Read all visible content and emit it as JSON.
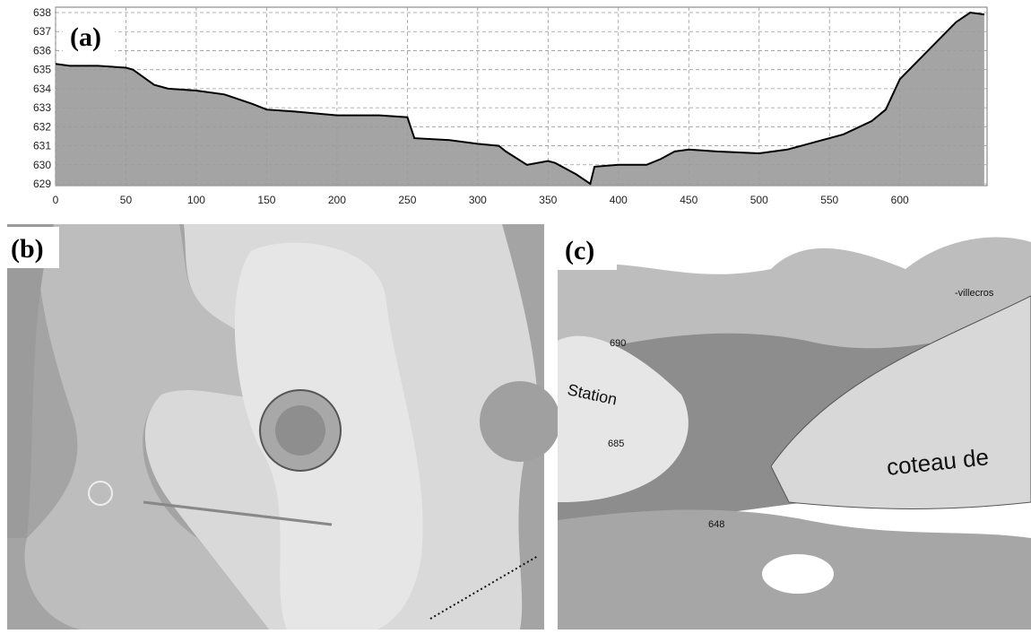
{
  "chart_data": {
    "type": "area",
    "label": "(a)",
    "x": [
      0,
      10,
      30,
      50,
      55,
      70,
      80,
      100,
      120,
      140,
      150,
      170,
      200,
      230,
      250,
      255,
      280,
      300,
      315,
      320,
      335,
      350,
      355,
      370,
      380,
      383,
      400,
      420,
      430,
      440,
      450,
      470,
      500,
      520,
      540,
      560,
      580,
      590,
      600,
      620,
      640,
      650,
      660
    ],
    "values": [
      635.3,
      635.2,
      635.2,
      635.1,
      635.0,
      634.2,
      634.0,
      633.9,
      633.7,
      633.2,
      632.9,
      632.8,
      632.6,
      632.6,
      632.5,
      631.4,
      631.3,
      631.1,
      631.0,
      630.7,
      630.0,
      630.2,
      630.1,
      629.5,
      629.0,
      629.9,
      630.0,
      630.0,
      630.3,
      630.7,
      630.8,
      630.7,
      630.6,
      630.8,
      631.2,
      631.6,
      632.3,
      632.9,
      634.5,
      636.0,
      637.5,
      638.0,
      637.9
    ],
    "color": "#000000",
    "fill": "#9a9a9a",
    "xlim": [
      0,
      662
    ],
    "ylim": [
      629,
      638
    ],
    "xticks": [
      0,
      50,
      100,
      150,
      200,
      250,
      300,
      350,
      400,
      450,
      500,
      550,
      600
    ],
    "yticks": [
      629,
      630,
      631,
      632,
      633,
      634,
      635,
      636,
      637,
      638
    ],
    "grid": true
  },
  "panel_b": {
    "label": "(b)"
  },
  "panel_c": {
    "label": "(c)",
    "texts": [
      "coteau de",
      "Station",
      "690",
      "685",
      "648",
      "-villecros"
    ]
  }
}
